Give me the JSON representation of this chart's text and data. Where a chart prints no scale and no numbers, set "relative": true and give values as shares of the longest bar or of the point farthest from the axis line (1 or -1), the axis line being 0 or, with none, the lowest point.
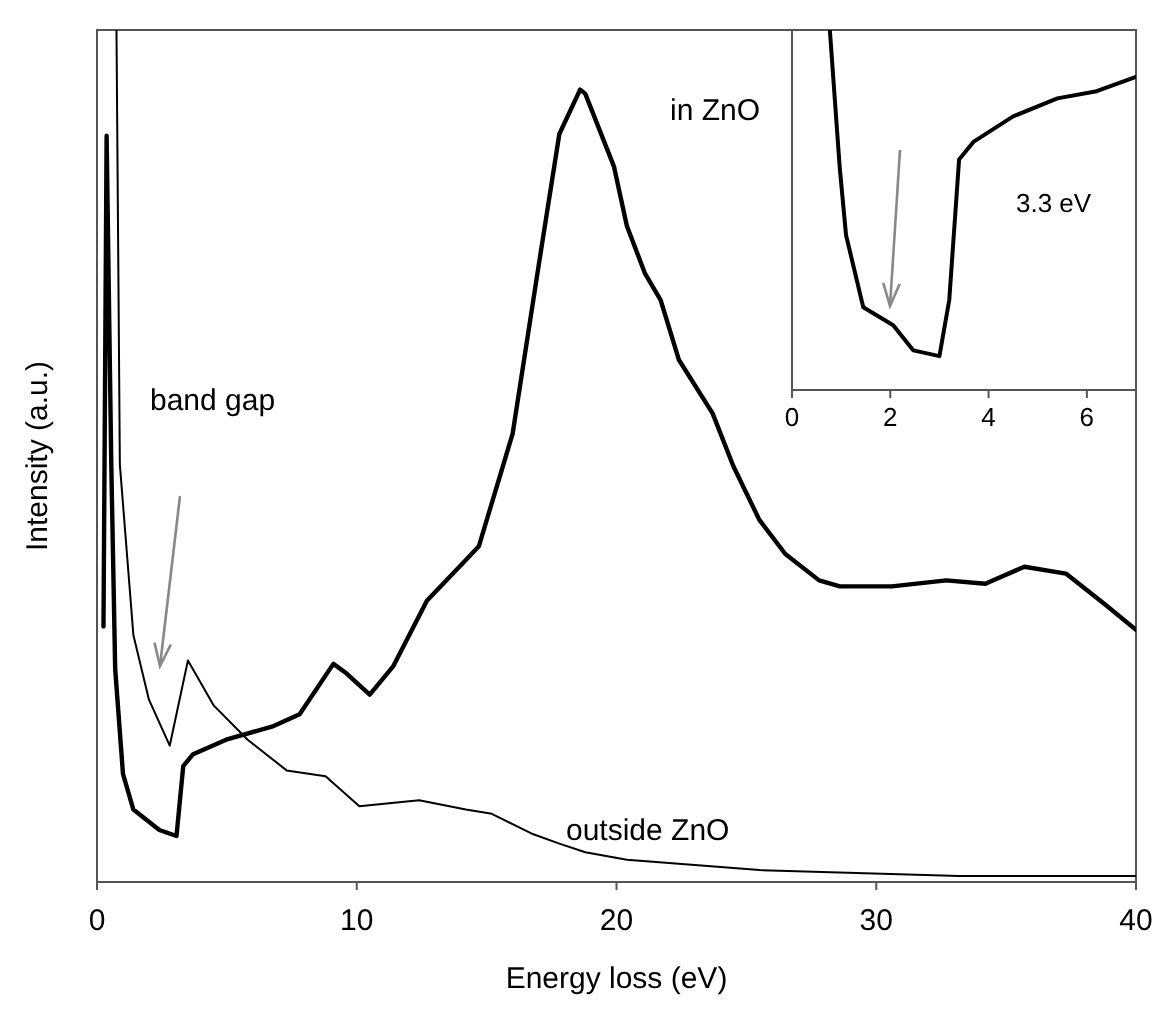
{
  "chart_data": [
    {
      "type": "line",
      "xlabel": "Energy loss (eV)",
      "ylabel": "Intensity (a.u.)",
      "relative": true,
      "xlim": [
        0,
        40
      ],
      "xticks": [
        0,
        10,
        20,
        30,
        40
      ],
      "line_style": "solid",
      "annotations": [
        "band gap"
      ],
      "series": [
        {
          "name": "in ZnO",
          "color": "#000000",
          "x": [
            0.25,
            0.37,
            0.55,
            0.7,
            1.0,
            1.4,
            2.4,
            3.06,
            3.32,
            3.7,
            4.97,
            6.8,
            7.8,
            9.1,
            9.6,
            10.5,
            11.4,
            12.7,
            14.2,
            14.7,
            16.0,
            17.0,
            17.8,
            18.6,
            18.8,
            19.9,
            20.4,
            21.1,
            21.7,
            22.4,
            23.7,
            24.5,
            25.5,
            26.5,
            27.8,
            28.6,
            30.6,
            32.7,
            34.2,
            35.7,
            37.3,
            38.8,
            40
          ],
          "values": [
            0.3,
            0.876,
            0.49,
            0.25,
            0.127,
            0.085,
            0.061,
            0.054,
            0.136,
            0.15,
            0.167,
            0.183,
            0.197,
            0.256,
            0.245,
            0.22,
            0.253,
            0.33,
            0.378,
            0.394,
            0.526,
            0.723,
            0.878,
            0.93,
            0.925,
            0.84,
            0.77,
            0.714,
            0.683,
            0.613,
            0.55,
            0.488,
            0.425,
            0.385,
            0.354,
            0.347,
            0.347,
            0.354,
            0.35,
            0.37,
            0.362,
            0.326,
            0.296
          ]
        },
        {
          "name": "outside ZnO",
          "color": "#000000",
          "x": [
            0.75,
            0.88,
            1.4,
            2.0,
            2.8,
            3.5,
            4.5,
            5.8,
            7.3,
            8.8,
            10.1,
            12.4,
            14.2,
            15.2,
            16.8,
            17.8,
            18.8,
            20.4,
            25.5,
            33.2,
            40
          ],
          "values": [
            1.0,
            0.49,
            0.29,
            0.214,
            0.16,
            0.26,
            0.207,
            0.167,
            0.131,
            0.124,
            0.089,
            0.096,
            0.085,
            0.08,
            0.056,
            0.045,
            0.035,
            0.026,
            0.014,
            0.007,
            0.007
          ]
        }
      ]
    },
    {
      "type": "line",
      "relative": true,
      "xlim": [
        0,
        7
      ],
      "xticks": [
        0,
        2,
        4,
        6
      ],
      "line_style": "solid",
      "annotations": [
        "3.3 eV"
      ],
      "series": [
        {
          "color": "#000000",
          "x": [
            0.77,
            0.97,
            1.1,
            1.45,
            2.06,
            2.47,
            3.0,
            3.2,
            3.4,
            3.7,
            4.5,
            5.4,
            6.2,
            7.0
          ],
          "values": [
            1.0,
            0.62,
            0.43,
            0.23,
            0.18,
            0.11,
            0.094,
            0.25,
            0.64,
            0.69,
            0.76,
            0.81,
            0.83,
            0.87
          ]
        }
      ]
    }
  ]
}
